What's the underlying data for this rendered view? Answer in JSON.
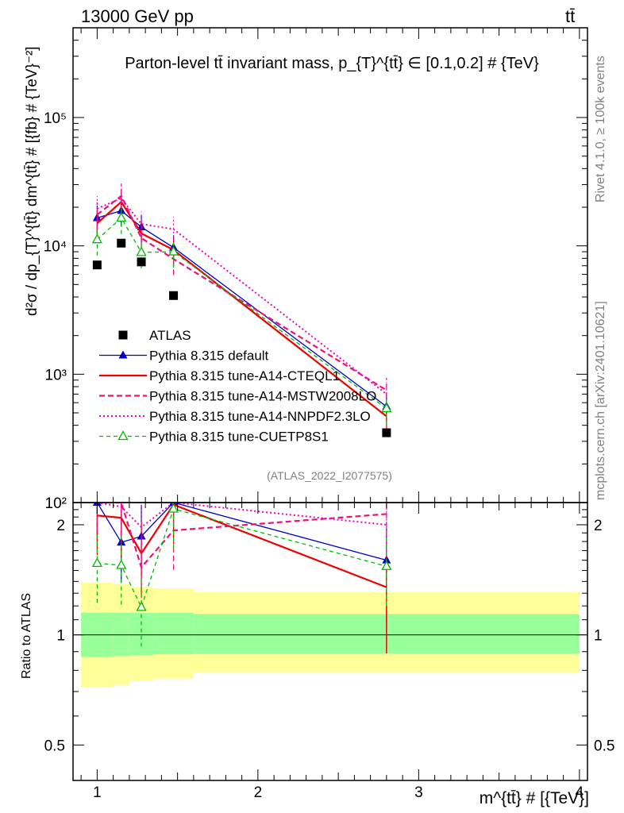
{
  "header": {
    "left": "13000 GeV pp",
    "right": "tt̄"
  },
  "side": {
    "top": "Rivet 4.1.0, ≥ 100k events",
    "bottom": "mcplots.cern.ch [arXiv:2401.10621]"
  },
  "colors": {
    "atlas": "#000000",
    "default": "#0000cc",
    "cteq": "#ee0000",
    "mstw": "#ee1177",
    "nnpdf": "#ee00cc",
    "cuetp": "#00bb00",
    "band_inner": "#99ff99",
    "band_outer": "#ffff99"
  },
  "chart_data": [
    {
      "type": "line",
      "title": "Parton-level tt̄ invariant mass, p_{T}^{tt̄} ∈ [0.1,0.2] # {TeV}",
      "xlabel": "m^{tt̄} # [{TeV}]",
      "ylabel": "d²σ / dp_{T}^{tt̄} dm^{tt̄} # [{fb} # {TeV}⁻²]",
      "yscale": "log",
      "xlim": [
        0.85,
        4.05
      ],
      "ylim": [
        100,
        500000
      ],
      "yticks": [
        {
          "value": 100,
          "label": "10²"
        },
        {
          "value": 1000,
          "label": "10³"
        },
        {
          "value": 10000,
          "label": "10⁴"
        },
        {
          "value": 100000,
          "label": "10⁵"
        }
      ],
      "watermark": "(ATLAS_2022_I2077575)",
      "series": [
        {
          "key": "atlas",
          "name": "ATLAS",
          "x": [
            1.0,
            1.15,
            1.275,
            1.475,
            2.8
          ],
          "y": [
            7100,
            10500,
            7500,
            4100,
            350
          ]
        },
        {
          "key": "default",
          "name": "Pythia 8.315 default",
          "x": [
            1.0,
            1.15,
            1.275,
            1.475,
            2.8
          ],
          "y": [
            16500,
            18800,
            14000,
            9700,
            560
          ]
        },
        {
          "key": "cteq",
          "name": "Pythia 8.315 tune-A14-CTEQL1",
          "x": [
            1.0,
            1.15,
            1.275,
            1.475,
            2.8
          ],
          "y": [
            15000,
            22000,
            12500,
            9300,
            470
          ]
        },
        {
          "key": "mstw",
          "name": "Pythia 8.315 tune-A14-MSTW2008LO",
          "x": [
            1.0,
            1.15,
            1.275,
            1.475,
            2.8
          ],
          "y": [
            17500,
            24500,
            11500,
            7900,
            750
          ]
        },
        {
          "key": "nnpdf",
          "name": "Pythia 8.315 tune-A14-NNPDF2.3LO",
          "x": [
            1.0,
            1.15,
            1.275,
            1.475,
            2.8
          ],
          "y": [
            19500,
            23500,
            14800,
            13500,
            700
          ]
        },
        {
          "key": "cuetp",
          "name": "Pythia 8.315 tune-CUETP8S1",
          "x": [
            1.0,
            1.15,
            1.275,
            1.475,
            2.8
          ],
          "y": [
            11200,
            16500,
            8900,
            9000,
            540
          ]
        }
      ]
    },
    {
      "type": "line",
      "title": "",
      "xlabel": "m^{tt̄} # [{TeV}]",
      "ylabel": "Ratio to ATLAS",
      "yscale": "log",
      "xlim": [
        0.85,
        4.05
      ],
      "ylim": [
        0.4,
        2.3
      ],
      "xticks": [
        1,
        2,
        3,
        4
      ],
      "yticks": [
        0.5,
        1,
        2
      ],
      "bands": [
        {
          "x": [
            0.9,
            1.1,
            1.2,
            1.35,
            1.6,
            4.0
          ],
          "inner_lo": [
            0.87,
            0.875,
            0.88,
            0.885,
            0.89
          ],
          "inner_hi": [
            1.15,
            1.15,
            1.15,
            1.15,
            1.14
          ],
          "outer_lo": [
            0.72,
            0.73,
            0.75,
            0.76,
            0.79
          ],
          "outer_hi": [
            1.39,
            1.38,
            1.35,
            1.34,
            1.31
          ]
        }
      ],
      "series": [
        {
          "key": "default",
          "name": "Pythia 8.315 default",
          "x": [
            1.0,
            1.15,
            1.275,
            1.475,
            2.8
          ],
          "y": [
            2.32,
            1.79,
            1.86,
            2.37,
            1.6
          ]
        },
        {
          "key": "cteq",
          "name": "Pythia 8.315 tune-A14-CTEQL1",
          "x": [
            1.0,
            1.15,
            1.275,
            1.475,
            2.8
          ],
          "y": [
            2.12,
            2.09,
            1.67,
            2.27,
            1.35
          ]
        },
        {
          "key": "mstw",
          "name": "Pythia 8.315 tune-A14-MSTW2008LO",
          "x": [
            1.0,
            1.15,
            1.275,
            1.475,
            2.8
          ],
          "y": [
            2.45,
            2.33,
            1.53,
            1.93,
            2.14
          ]
        },
        {
          "key": "nnpdf",
          "name": "Pythia 8.315 tune-A14-NNPDF2.3LO",
          "x": [
            1.0,
            1.15,
            1.275,
            1.475,
            2.8
          ],
          "y": [
            2.75,
            2.24,
            1.97,
            3.3,
            2.0
          ]
        },
        {
          "key": "cuetp",
          "name": "Pythia 8.315 tune-CUETP8S1",
          "x": [
            1.0,
            1.15,
            1.275,
            1.475,
            2.8
          ],
          "y": [
            1.57,
            1.55,
            1.19,
            2.21,
            1.54
          ]
        }
      ]
    }
  ]
}
